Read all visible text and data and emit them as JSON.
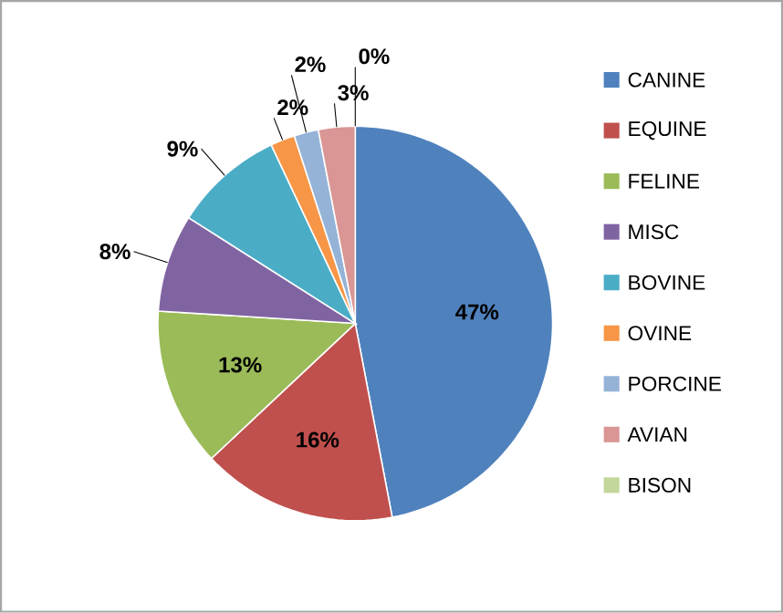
{
  "chart_data": {
    "type": "pie",
    "categories": [
      "CANINE",
      "EQUINE",
      "FELINE",
      "MISC",
      "BOVINE",
      "OVINE",
      "PORCINE",
      "AVIAN",
      "BISON"
    ],
    "values": [
      47,
      16,
      13,
      8,
      9,
      2,
      2,
      3,
      0
    ],
    "value_labels": [
      "47%",
      "16%",
      "13%",
      "8%",
      "9%",
      "2%",
      "2%",
      "3%",
      "0%"
    ],
    "colors": [
      "#4f81bd",
      "#c0504d",
      "#9bbb59",
      "#8064a2",
      "#4bacc6",
      "#f79646",
      "#95b3d7",
      "#d99694",
      "#c3d69b"
    ],
    "legend": "right"
  }
}
